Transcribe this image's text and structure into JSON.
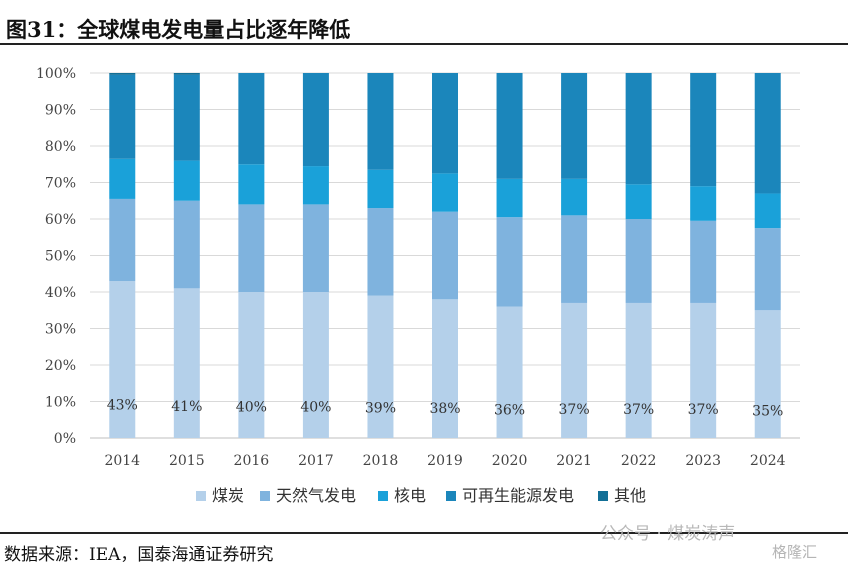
{
  "title": "图31：全球煤电发电量占比逐年降低",
  "source": "数据来源：IEA，国泰海通证券研究",
  "watermark": "公众号 · 煤炭涛声",
  "logo_text": "格隆汇",
  "colors": {
    "coal": "#b4d0ea",
    "gas": "#7fb3de",
    "nuclear": "#1aa1d9",
    "renewable": "#1b86bb",
    "other": "#126f96",
    "grid": "#d9d9d9",
    "axis_text": "#444444"
  },
  "chart_data": {
    "type": "bar",
    "stacked": true,
    "percent_stacked": true,
    "categories": [
      "2014",
      "2015",
      "2016",
      "2017",
      "2018",
      "2019",
      "2020",
      "2021",
      "2022",
      "2023",
      "2024"
    ],
    "yticks": [
      "0%",
      "10%",
      "20%",
      "30%",
      "40%",
      "50%",
      "60%",
      "70%",
      "80%",
      "90%",
      "100%"
    ],
    "ylim": [
      0,
      100
    ],
    "grid": true,
    "legend_position": "bottom",
    "series": [
      {
        "name": "煤炭",
        "color_key": "coal",
        "values": [
          43,
          41,
          40,
          40,
          39,
          38,
          36,
          37,
          37,
          37,
          35
        ],
        "labels": [
          "43%",
          "41%",
          "40%",
          "40%",
          "39%",
          "38%",
          "36%",
          "37%",
          "37%",
          "37%",
          "35%"
        ]
      },
      {
        "name": "天然气发电",
        "color_key": "gas",
        "values": [
          22.5,
          24,
          24,
          24,
          24,
          24,
          24.5,
          24,
          23,
          22.5,
          22.5
        ]
      },
      {
        "name": "核电",
        "color_key": "nuclear",
        "values": [
          11,
          11,
          11,
          10.5,
          10.5,
          10.5,
          10.5,
          10,
          9.5,
          9.5,
          9.5
        ]
      },
      {
        "name": "可再生能源发电",
        "color_key": "renewable",
        "values": [
          23,
          23.5,
          25,
          25.5,
          26.5,
          27.5,
          29,
          29,
          30.5,
          31,
          33
        ]
      },
      {
        "name": "其他",
        "color_key": "other",
        "values": [
          0.5,
          0.5,
          0,
          0,
          0,
          0,
          0,
          0,
          0,
          0,
          0
        ]
      }
    ]
  }
}
